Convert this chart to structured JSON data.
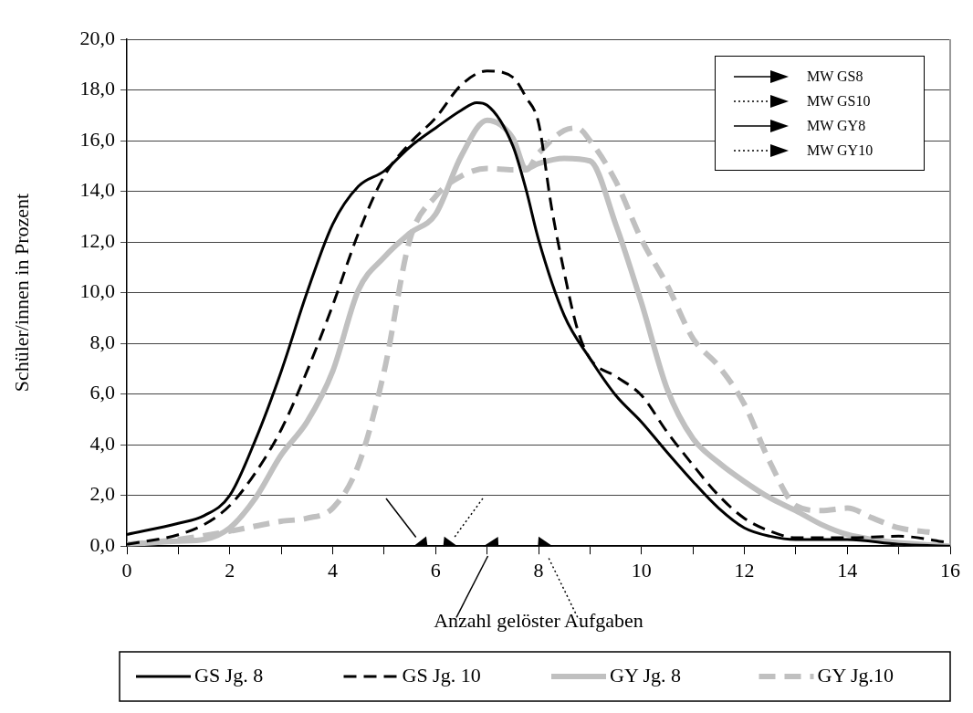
{
  "chart_data": {
    "type": "line",
    "xlabel": "Anzahl gelöster Aufgaben",
    "ylabel": "Schüler/innen in Prozent",
    "xlim": [
      0,
      16
    ],
    "xticks": [
      0,
      {
        "value": 1,
        "label": null
      },
      2,
      {
        "value": 3,
        "label": null
      },
      4,
      {
        "value": 5,
        "label": null
      },
      6,
      {
        "value": 7,
        "label": null
      },
      8,
      {
        "value": 9,
        "label": null
      },
      10,
      {
        "value": 11,
        "label": null
      },
      12,
      {
        "value": 13,
        "label": null
      },
      14,
      {
        "value": 15,
        "label": null
      },
      16
    ],
    "ylim": [
      0,
      20
    ],
    "yticks": [
      {
        "value": 0,
        "label": "0,0"
      },
      {
        "value": 2,
        "label": "2,0"
      },
      {
        "value": 4,
        "label": "4,0"
      },
      {
        "value": 6,
        "label": "6,0"
      },
      {
        "value": 8,
        "label": "8,0"
      },
      {
        "value": 10,
        "label": "10,0"
      },
      {
        "value": 12,
        "label": "12,0"
      },
      {
        "value": 14,
        "label": "14,0"
      },
      {
        "value": 16,
        "label": "16,0"
      },
      {
        "value": 18,
        "label": "18,0"
      },
      {
        "value": 20,
        "label": "20,0"
      }
    ],
    "grid": "y",
    "legend": "bottom",
    "series": [
      {
        "name": "GS Jg. 8",
        "type": "line",
        "color": "#000000",
        "line_style": "solid",
        "x": [
          0,
          1,
          1.5,
          2,
          2.5,
          3,
          3.5,
          4,
          4.5,
          5,
          5.5,
          6,
          6.5,
          6.8,
          7,
          7.5,
          7.76,
          8,
          8.5,
          9,
          9.5,
          10,
          10.5,
          11,
          11.5,
          12,
          12.5,
          13,
          14,
          15,
          16
        ],
        "values": [
          0.46,
          0.9,
          1.2,
          2.0,
          4.2,
          6.9,
          10.0,
          12.7,
          14.2,
          14.8,
          15.75,
          16.5,
          17.2,
          17.5,
          17.4,
          15.8,
          14.05,
          12.1,
          9.1,
          7.4,
          5.95,
          4.9,
          3.7,
          2.55,
          1.5,
          0.72,
          0.39,
          0.26,
          0.26,
          0.07,
          0
        ]
      },
      {
        "name": "GS Jg. 10",
        "type": "line",
        "color": "#000000",
        "line_style": "dashed",
        "x": [
          0,
          1,
          1.5,
          2,
          2.5,
          3,
          3.5,
          4,
          4.5,
          5,
          5.5,
          6,
          6.5,
          7,
          7.5,
          7.76,
          8,
          8.25,
          8.5,
          8.75,
          9,
          9.5,
          10,
          10.5,
          11,
          11.5,
          12,
          12.5,
          13,
          14,
          15,
          16
        ],
        "values": [
          0.07,
          0.45,
          0.85,
          1.6,
          2.9,
          4.6,
          6.9,
          9.5,
          12.35,
          14.6,
          15.9,
          16.9,
          18.2,
          18.75,
          18.5,
          17.7,
          16.7,
          13.4,
          10.8,
          8.6,
          7.4,
          6.7,
          5.95,
          4.5,
          3.2,
          2.0,
          1.1,
          0.59,
          0.33,
          0.33,
          0.39,
          0.13
        ]
      },
      {
        "name": "GY Jg. 8",
        "type": "line",
        "color": "#c0c0c0",
        "line_style": "solid",
        "x": [
          0,
          1,
          1.5,
          2,
          2.5,
          3,
          3.5,
          4,
          4.5,
          5,
          5.5,
          6,
          6.5,
          7,
          7.5,
          7.76,
          8,
          8.5,
          9,
          9.5,
          10,
          10.5,
          11,
          11.5,
          12,
          12.5,
          13,
          13.5,
          14,
          14.5,
          15,
          16
        ],
        "values": [
          0.07,
          0.2,
          0.26,
          0.72,
          1.9,
          3.6,
          4.9,
          6.9,
          10.1,
          11.4,
          12.35,
          13.1,
          15.4,
          16.8,
          16.1,
          14.9,
          15.1,
          15.3,
          15.2,
          12.7,
          9.6,
          6.2,
          4.25,
          3.3,
          2.55,
          1.9,
          1.4,
          0.85,
          0.46,
          0.26,
          0.13,
          0
        ]
      },
      {
        "name": "GY Jg.10",
        "type": "line",
        "color": "#c0c0c0",
        "line_style": "dashed",
        "x": [
          0,
          1,
          2,
          3,
          3.5,
          4,
          4.5,
          5,
          5.5,
          6,
          6.5,
          7,
          7.5,
          7.76,
          8,
          8.5,
          8.75,
          9,
          9.5,
          10,
          10.5,
          11,
          11.5,
          12,
          12.5,
          13,
          13.5,
          14,
          14.5,
          15,
          15.6
        ],
        "values": [
          0.07,
          0.26,
          0.59,
          0.98,
          1.1,
          1.5,
          3.2,
          6.9,
          12.1,
          13.8,
          14.6,
          14.9,
          14.85,
          14.85,
          15.5,
          16.4,
          16.5,
          16.0,
          14.4,
          12.1,
          10.3,
          8.2,
          7.1,
          5.6,
          3.3,
          1.6,
          1.4,
          1.5,
          1.1,
          0.72,
          0.55
        ]
      },
      {
        "name": "MW GS8",
        "type": "scatter",
        "color": "#000000",
        "line_style": "solid",
        "marker": "triangle",
        "x": [
          5.74
        ],
        "values": [
          0
        ]
      },
      {
        "name": "MW GS10",
        "type": "scatter",
        "color": "#000000",
        "line_style": "dotted",
        "marker": "triangle",
        "x": [
          6.25
        ],
        "values": [
          0
        ]
      },
      {
        "name": "MW GY8",
        "type": "scatter",
        "color": "#000000",
        "line_style": "solid",
        "marker": "triangle",
        "x": [
          7.12
        ],
        "values": [
          0
        ]
      },
      {
        "name": "MW GY10",
        "type": "scatter",
        "color": "#000000",
        "line_style": "dotted",
        "marker": "triangle",
        "x": [
          8.09
        ],
        "values": [
          0
        ]
      }
    ]
  }
}
